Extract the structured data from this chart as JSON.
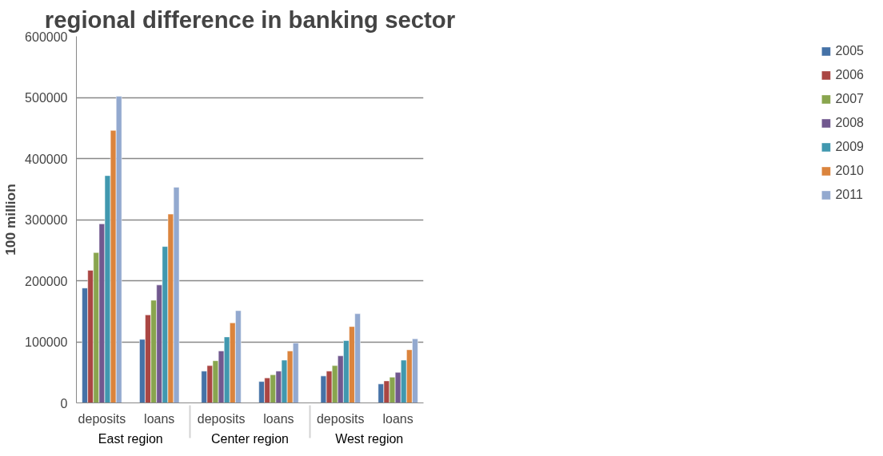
{
  "chart_data": {
    "type": "bar",
    "title": "regional difference in banking sector",
    "ylabel": "100 million",
    "categories": [
      "deposits",
      "loans",
      "deposits",
      "loans",
      "deposits",
      "loans"
    ],
    "annotations": [
      "East region",
      "Center region",
      "West region"
    ],
    "series": [
      {
        "name": "2005",
        "color": "#4572a7",
        "values": [
          188000,
          104000,
          52000,
          35000,
          44000,
          31000
        ]
      },
      {
        "name": "2006",
        "color": "#aa4643",
        "values": [
          217000,
          144000,
          61000,
          41000,
          52000,
          36000
        ]
      },
      {
        "name": "2007",
        "color": "#89a54e",
        "values": [
          246000,
          168000,
          69000,
          46000,
          61000,
          42000
        ]
      },
      {
        "name": "2008",
        "color": "#71588f",
        "values": [
          293000,
          193000,
          85000,
          52000,
          77000,
          50000
        ]
      },
      {
        "name": "2009",
        "color": "#4198af",
        "values": [
          372000,
          256000,
          108000,
          70000,
          102000,
          70000
        ]
      },
      {
        "name": "2010",
        "color": "#db843d",
        "values": [
          446000,
          309000,
          131000,
          85000,
          125000,
          87000
        ]
      },
      {
        "name": "2011",
        "color": "#93a9cf",
        "values": [
          502000,
          353000,
          151000,
          98000,
          146000,
          105000
        ]
      }
    ],
    "ylim": [
      0,
      600000
    ],
    "yticks": [
      0,
      100000,
      200000,
      300000,
      400000,
      500000,
      600000
    ],
    "grid": "y",
    "legend": "right"
  }
}
